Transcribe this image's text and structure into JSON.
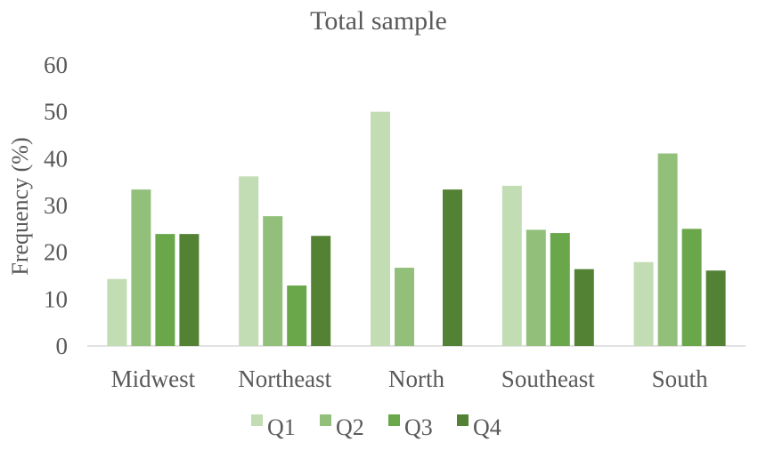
{
  "chart_data": {
    "type": "bar",
    "title": "Total sample",
    "xlabel": "",
    "ylabel": "Frequency (%)",
    "ylim": [
      0,
      60
    ],
    "yticks": [
      "0",
      "10",
      "20",
      "30",
      "40",
      "50",
      "60"
    ],
    "categories": [
      "Midwest",
      "Northeast",
      "North",
      "Southeast",
      "South"
    ],
    "series": [
      {
        "name": "Q1",
        "color": "#c2dcb4",
        "values": [
          14.3,
          36.2,
          50.0,
          34.2,
          17.9
        ]
      },
      {
        "name": "Q2",
        "color": "#92c07a",
        "values": [
          33.4,
          27.7,
          16.7,
          24.8,
          41.1
        ]
      },
      {
        "name": "Q3",
        "color": "#6aa64a",
        "values": [
          23.9,
          12.9,
          0,
          24.1,
          25.0
        ]
      },
      {
        "name": "Q4",
        "color": "#548235",
        "values": [
          23.9,
          23.5,
          33.4,
          16.4,
          16.1
        ]
      }
    ],
    "grid": false,
    "legend_position": "bottom"
  }
}
